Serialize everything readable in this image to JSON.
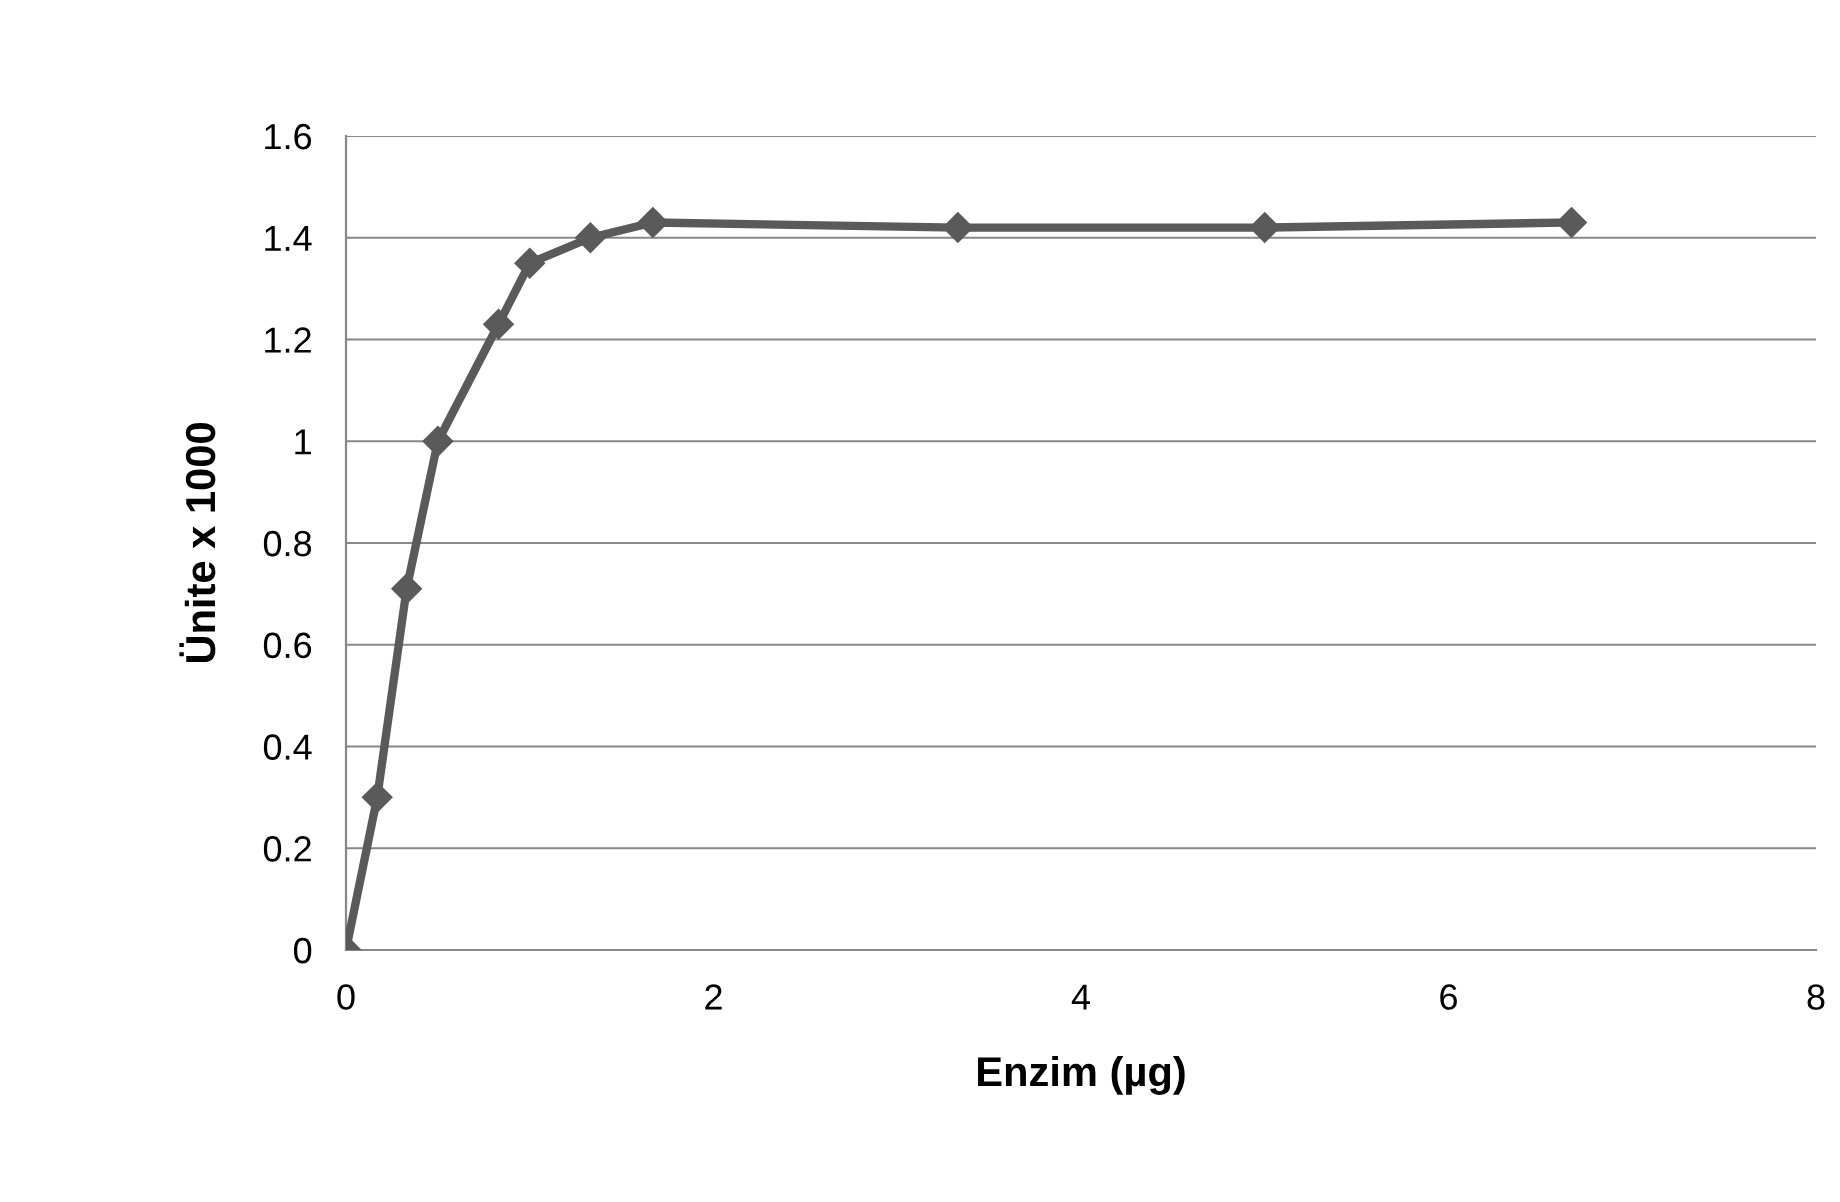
{
  "chart_data": {
    "type": "line",
    "xlabel": "Enzim (µg)",
    "ylabel": "Ünite x 1000",
    "x": [
      0,
      0.17,
      0.33,
      0.5,
      0.83,
      1.0,
      1.33,
      1.67,
      3.33,
      5.0,
      6.67
    ],
    "series": [
      {
        "color": "#5a5a5a",
        "values": [
          0,
          0.3,
          0.71,
          1.0,
          1.23,
          1.35,
          1.4,
          1.43,
          1.42,
          1.42,
          1.43
        ]
      }
    ],
    "xlim": [
      0,
      8
    ],
    "xticks": [
      0,
      2,
      4,
      6,
      8
    ],
    "ylim": [
      0,
      1.6
    ],
    "yticks": [
      0,
      0.2,
      0.4,
      0.6,
      0.8,
      1,
      1.2,
      1.4,
      1.6
    ],
    "grid": "y",
    "marker": "diamond",
    "line_style": "solid",
    "legend": false
  }
}
